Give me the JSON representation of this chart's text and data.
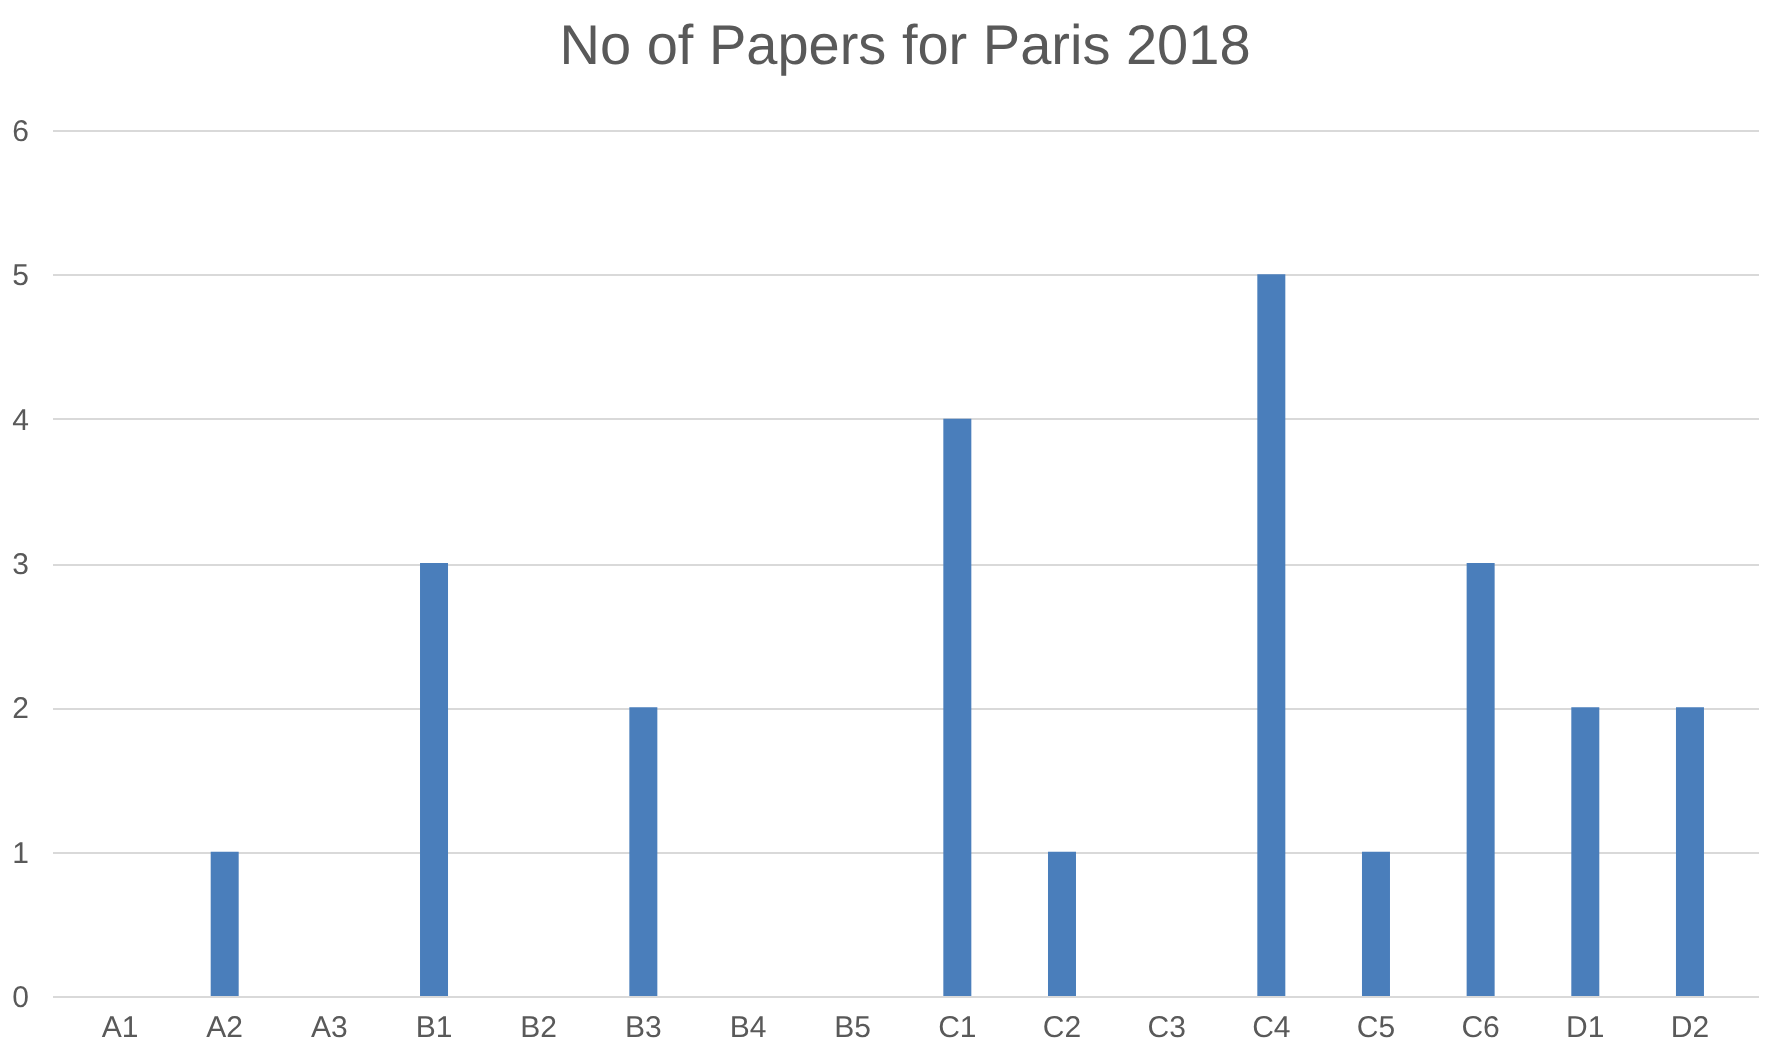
{
  "chart_data": {
    "type": "bar",
    "title": "No of Papers for Paris 2018",
    "categories": [
      "A1",
      "A2",
      "A3",
      "B1",
      "B2",
      "B3",
      "B4",
      "B5",
      "C1",
      "C2",
      "C3",
      "C4",
      "C5",
      "C6",
      "D1",
      "D2"
    ],
    "values": [
      0,
      1,
      0,
      3,
      0,
      2,
      0,
      0,
      4,
      1,
      0,
      5,
      1,
      3,
      2,
      2
    ],
    "color": "#4a7ebb",
    "ylim": [
      0,
      6
    ],
    "yticks": [
      0,
      1,
      2,
      3,
      4,
      5,
      6
    ],
    "grid": "y"
  }
}
